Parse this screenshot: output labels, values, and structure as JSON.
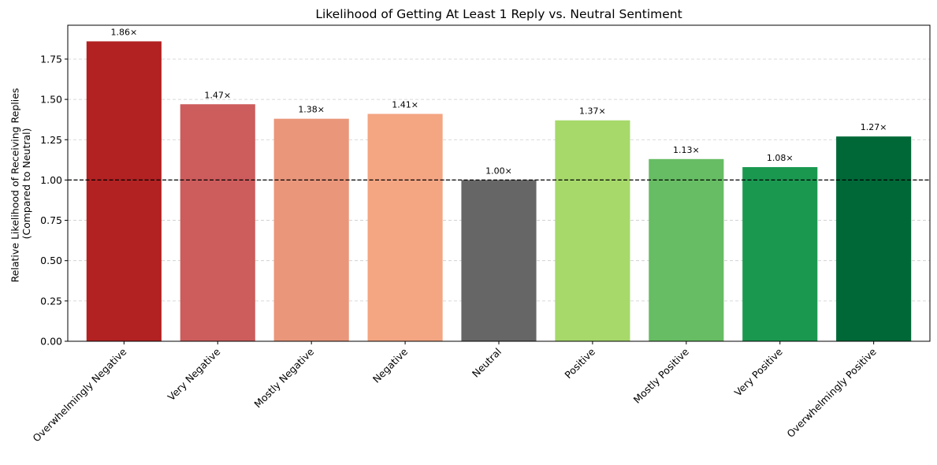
{
  "chart_data": {
    "type": "bar",
    "title": "Likelihood of Getting At Least 1 Reply vs. Neutral Sentiment",
    "xlabel": "",
    "ylabel_line1": "Relative Likelihood of Receiving Replies",
    "ylabel_line2": "(Compared to Neutral)",
    "categories": [
      "Overwhelmingly Negative",
      "Very Negative",
      "Mostly Negative",
      "Negative",
      "Neutral",
      "Positive",
      "Mostly Positive",
      "Very Positive",
      "Overwhelmingly Positive"
    ],
    "values": [
      1.86,
      1.47,
      1.38,
      1.41,
      1.0,
      1.37,
      1.13,
      1.08,
      1.27
    ],
    "data_labels": [
      "1.86×",
      "1.47×",
      "1.38×",
      "1.41×",
      "1.00×",
      "1.37×",
      "1.13×",
      "1.08×",
      "1.27×"
    ],
    "colors": [
      "#b22222",
      "#cd5c5c",
      "#e9967a",
      "#f4a582",
      "#666666",
      "#a6d96a",
      "#66bd63",
      "#1a9850",
      "#006837"
    ],
    "ylim": [
      0,
      1.96
    ],
    "yticks": [
      0.0,
      0.25,
      0.5,
      0.75,
      1.0,
      1.25,
      1.5,
      1.75
    ],
    "ytick_labels": [
      "0.00",
      "0.25",
      "0.50",
      "0.75",
      "1.00",
      "1.25",
      "1.50",
      "1.75"
    ],
    "reference_line": 1.0,
    "grid": "y-dashed",
    "legend": "none"
  }
}
